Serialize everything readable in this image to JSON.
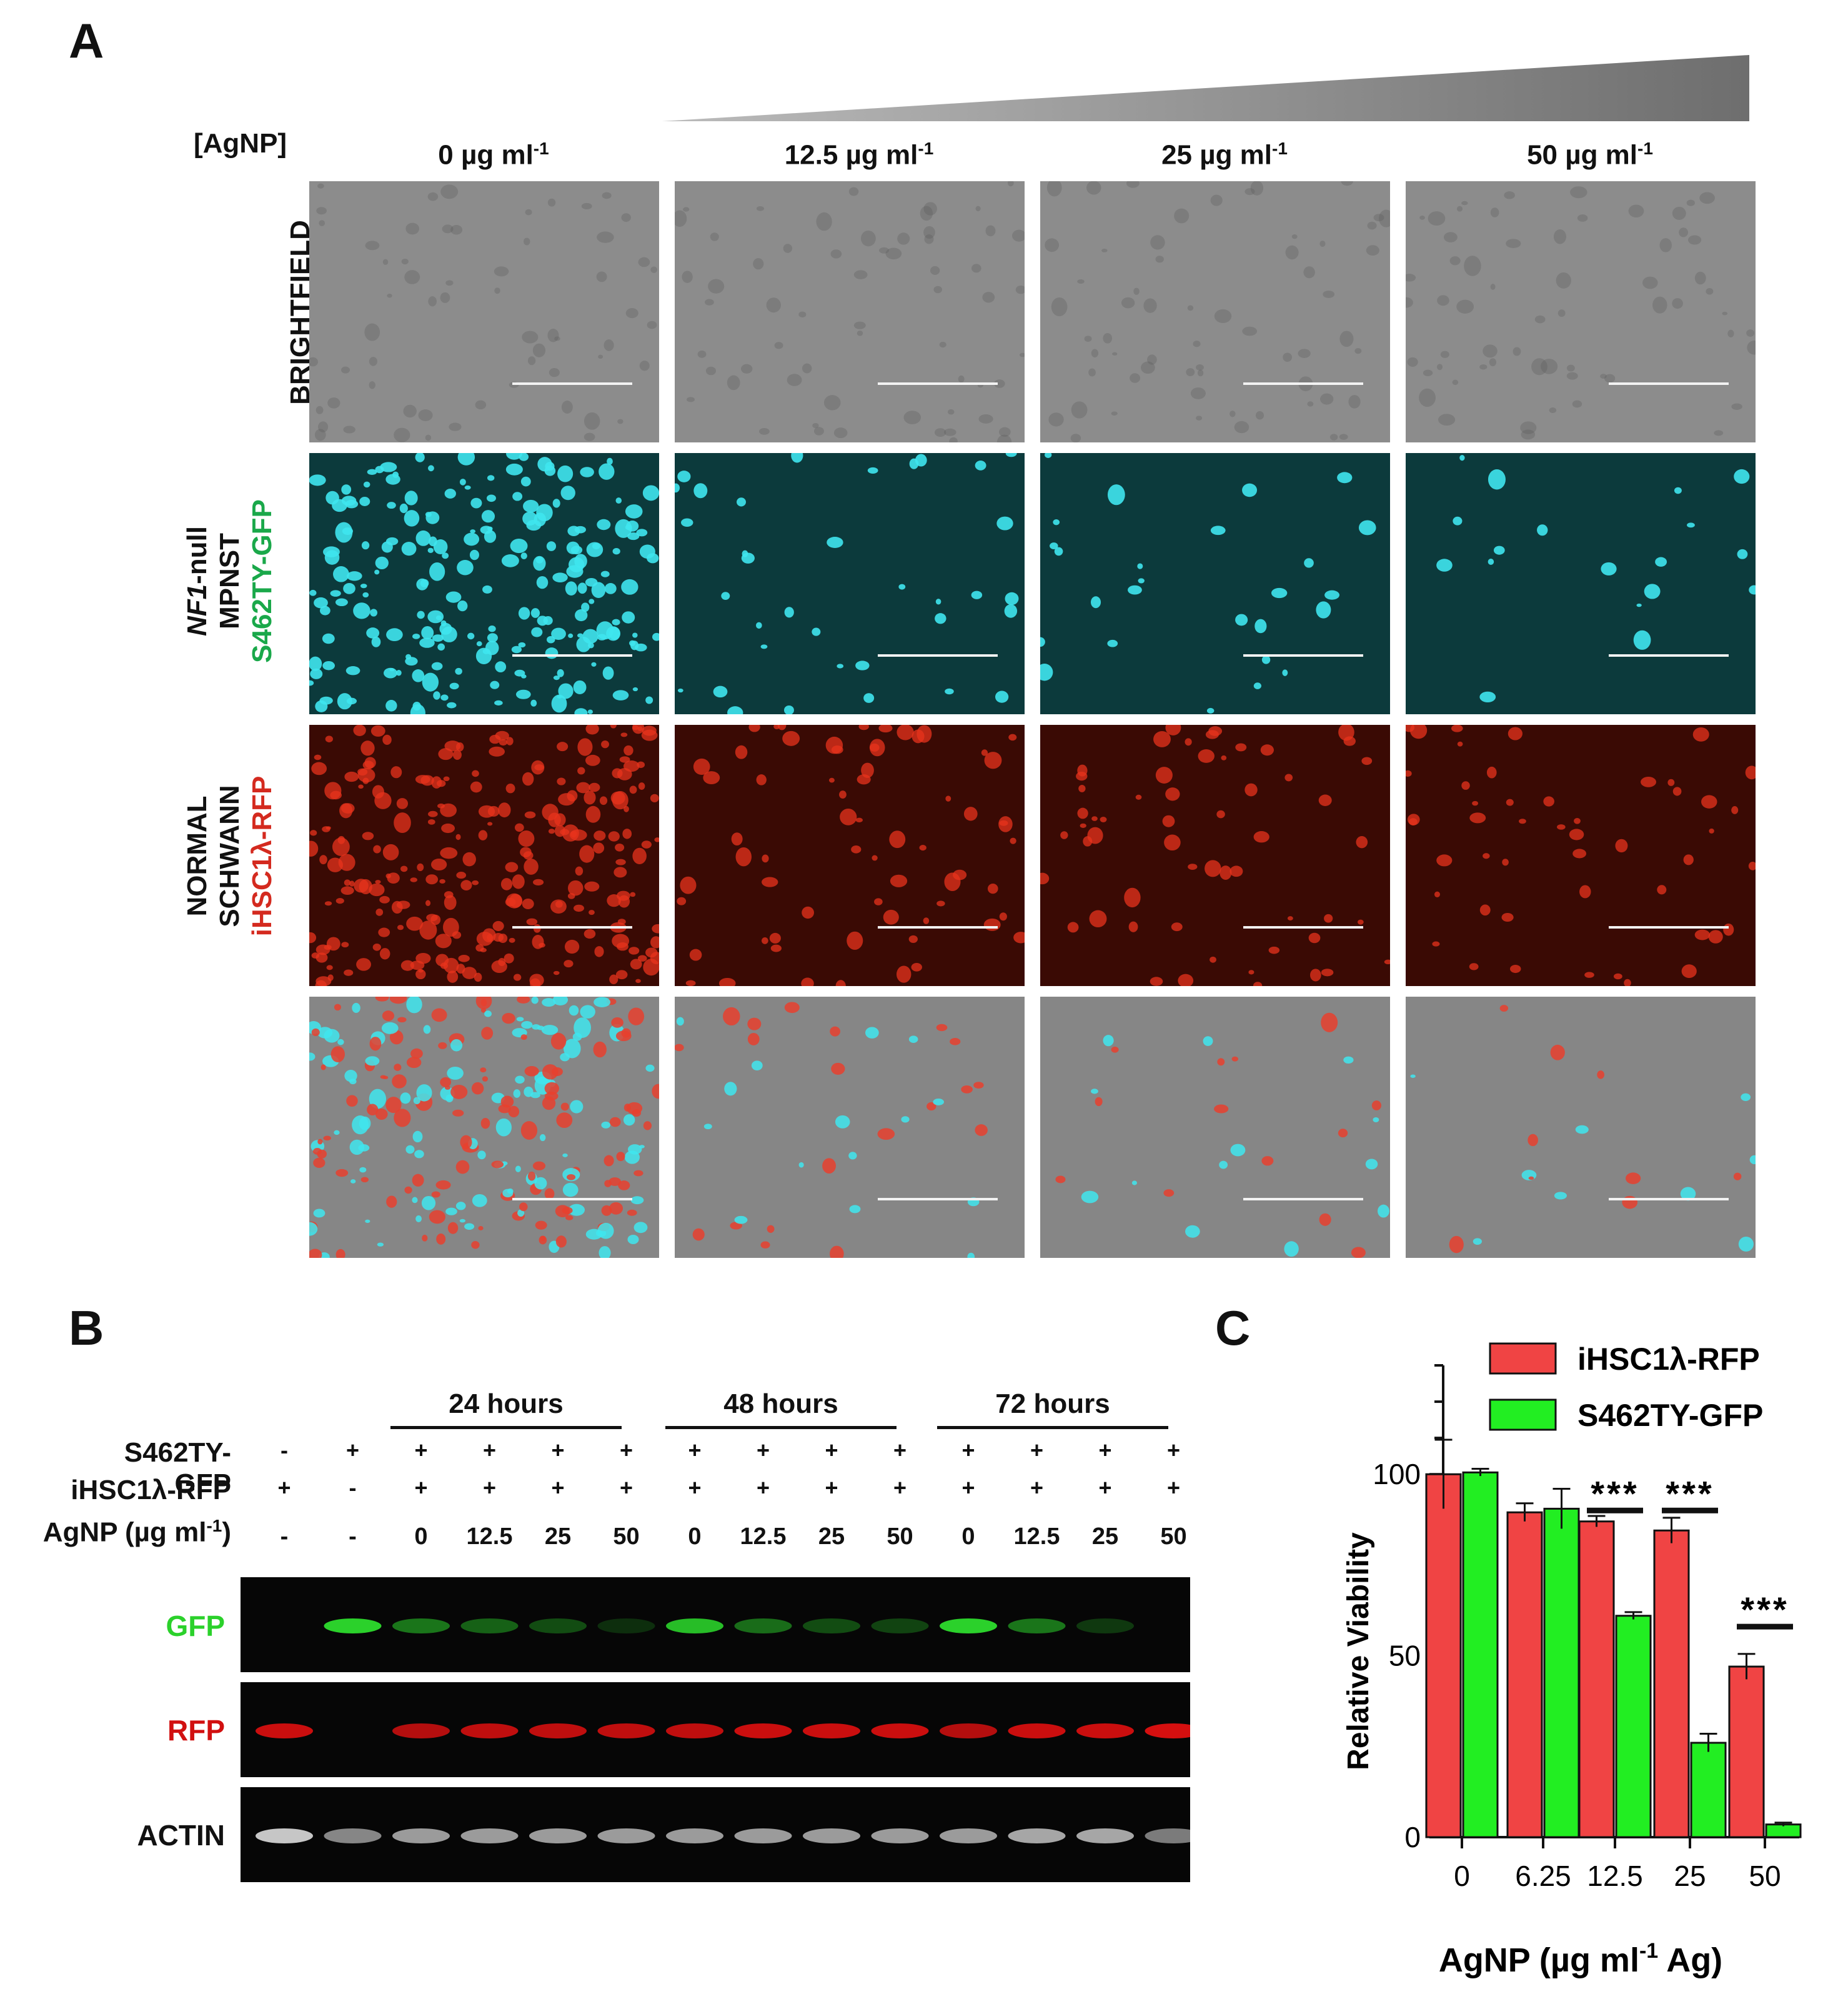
{
  "panel_a": {
    "label": "A",
    "conc_header": "[AgNP]",
    "columns": [
      "0 µg ml",
      "12.5 µg ml",
      "25 µg ml",
      "50 µg ml"
    ],
    "column_exponent": "-1",
    "row_brightfield": "BRIGHTFIELD",
    "row_mpnst": {
      "line1_italic": "NF1",
      "line1_rest": "-null",
      "line2": "MPNST",
      "line3": "S462TY-GFP"
    },
    "row_schwann": {
      "line1": "NORMAL",
      "line2": "SCHWANN",
      "line3": "iHSC1λ-RFP"
    },
    "colors": {
      "gfp": "#1aa84a",
      "rfp": "#d42a1f"
    }
  },
  "panel_b": {
    "label": "B",
    "time_groups": [
      "24 hours",
      "48 hours",
      "72 hours"
    ],
    "row_labels": {
      "gfp_line": "S462TY-GFP",
      "rfp_line": "iHSC1λ-RFP",
      "agnp": "AgNP (µg ml",
      "agnp_exp": "-1",
      "agnp_close": ")"
    },
    "lanes": [
      {
        "gfp": "-",
        "rfp": "+",
        "agnp": "-"
      },
      {
        "gfp": "+",
        "rfp": "-",
        "agnp": "-"
      },
      {
        "gfp": "+",
        "rfp": "+",
        "agnp": "0"
      },
      {
        "gfp": "+",
        "rfp": "+",
        "agnp": "12.5"
      },
      {
        "gfp": "+",
        "rfp": "+",
        "agnp": "25"
      },
      {
        "gfp": "+",
        "rfp": "+",
        "agnp": "50"
      },
      {
        "gfp": "+",
        "rfp": "+",
        "agnp": "0"
      },
      {
        "gfp": "+",
        "rfp": "+",
        "agnp": "12.5"
      },
      {
        "gfp": "+",
        "rfp": "+",
        "agnp": "25"
      },
      {
        "gfp": "+",
        "rfp": "+",
        "agnp": "50"
      },
      {
        "gfp": "+",
        "rfp": "+",
        "agnp": "0"
      },
      {
        "gfp": "+",
        "rfp": "+",
        "agnp": "12.5"
      },
      {
        "gfp": "+",
        "rfp": "+",
        "agnp": "25"
      },
      {
        "gfp": "+",
        "rfp": "+",
        "agnp": "50"
      }
    ],
    "blots": {
      "gfp": {
        "label": "GFP",
        "color": "#2bd12b",
        "intensity": [
          0,
          1.0,
          0.55,
          0.45,
          0.35,
          0.2,
          0.9,
          0.5,
          0.35,
          0.3,
          1.0,
          0.55,
          0.25,
          0
        ]
      },
      "rfp": {
        "label": "RFP",
        "color": "#e01010",
        "intensity": [
          0.9,
          0,
          0.8,
          0.85,
          0.85,
          0.85,
          0.85,
          0.9,
          0.9,
          0.9,
          0.8,
          0.9,
          0.9,
          0.95
        ]
      },
      "actin": {
        "label": "ACTIN",
        "color": "#dcdcdc",
        "intensity": [
          0.9,
          0.6,
          0.7,
          0.7,
          0.7,
          0.7,
          0.7,
          0.7,
          0.7,
          0.7,
          0.7,
          0.75,
          0.75,
          0.55
        ]
      }
    }
  },
  "panel_c": {
    "label": "C",
    "chart_data": {
      "type": "bar",
      "categories": [
        "0",
        "6.25",
        "12.5",
        "25",
        "50"
      ],
      "series": [
        {
          "name": "iHSC1λ-RFP",
          "color": "#f04444",
          "values": [
            100,
            89.5,
            87,
            84.5,
            47
          ],
          "errors": [
            9.5,
            2.5,
            1.5,
            3.5,
            3.5
          ]
        },
        {
          "name": "S462TY-GFP",
          "color": "#22ee22",
          "values": [
            100.5,
            90.5,
            61,
            26,
            3.5
          ],
          "errors": [
            1,
            5.5,
            1,
            2.5,
            0.5
          ]
        }
      ],
      "xlabel": "AgNP (µg ml",
      "xlabel_exp": "-1",
      "xlabel_tail": " Ag)",
      "ylabel": "Relative Viability",
      "ylim": [
        0,
        130
      ],
      "yticks": [
        0,
        50,
        100
      ],
      "significance": [
        {
          "category": "12.5",
          "label": "***"
        },
        {
          "category": "25",
          "label": "***"
        },
        {
          "category": "50",
          "label": "***"
        }
      ],
      "legend_position": "top-right"
    }
  }
}
